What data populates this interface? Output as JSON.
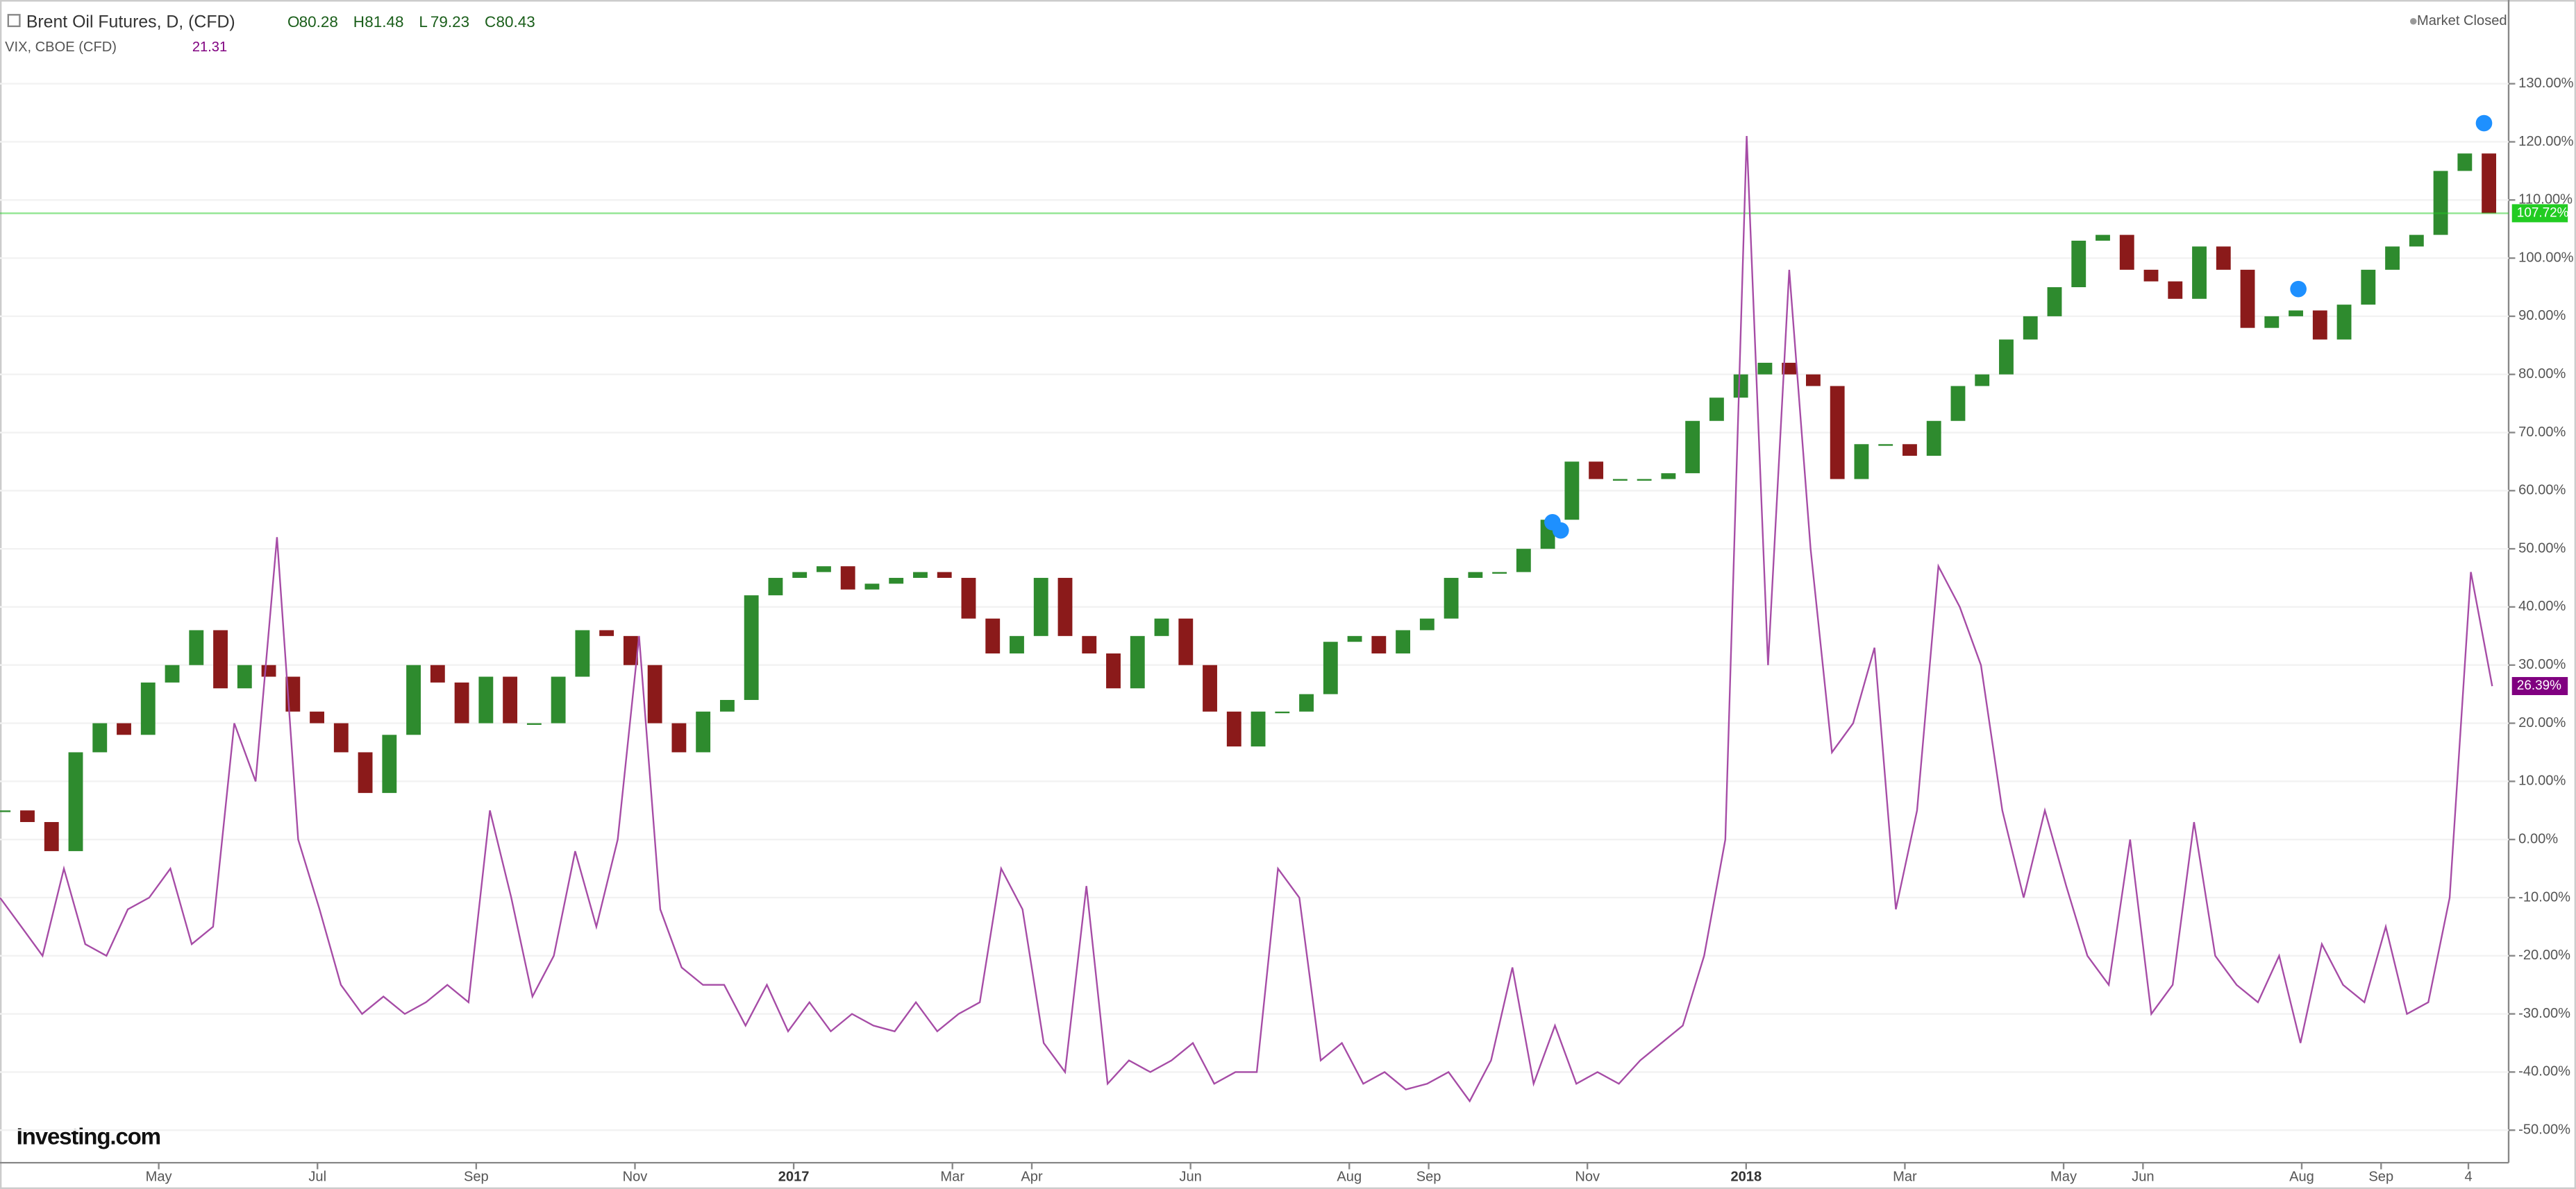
{
  "chart_data": {
    "type": "candlestick",
    "title": "Brent Oil Futures, D, (CFD)",
    "quote": [
      {
        "label": "O",
        "value": 80.28
      },
      {
        "label": "H",
        "value": 81.48
      },
      {
        "label": "L",
        "value": 79.23
      },
      {
        "label": "C",
        "value": 80.43
      }
    ],
    "status": "Market Closed",
    "logo": "Investing.com",
    "series": [
      {
        "name": "Brent Oil Futures, D, (CFD)",
        "type": "candlestick",
        "up_color": "#2e8b2e",
        "down_color": "#8b1a1a",
        "tag_color": "#22cc22",
        "last_label": "107.72%",
        "values": [
          5,
          3,
          -2,
          15,
          20,
          18,
          27,
          30,
          36,
          26,
          30,
          28,
          22,
          20,
          15,
          8,
          18,
          30,
          27,
          20,
          28,
          20,
          20,
          28,
          36,
          35,
          30,
          20,
          15,
          22,
          24,
          42,
          45,
          46,
          47,
          43,
          44,
          45,
          46,
          45,
          38,
          32,
          35,
          45,
          35,
          32,
          26,
          35,
          38,
          30,
          22,
          16,
          22,
          22,
          25,
          34,
          35,
          32,
          36,
          38,
          45,
          46,
          46,
          50,
          55,
          65,
          62,
          62,
          62,
          63,
          72,
          76,
          80,
          82,
          80,
          78,
          62,
          68,
          68,
          66,
          72,
          78,
          80,
          86,
          90,
          95,
          103,
          104,
          98,
          96,
          93,
          102,
          98,
          88,
          90,
          91,
          86,
          92,
          98,
          102,
          104,
          115,
          118,
          107.72
        ]
      },
      {
        "name": "VIX, CBOE (CFD)",
        "type": "line",
        "color": "#a64ca6",
        "tag_color": "#800080",
        "last_label": "26.39%",
        "quote": 21.31,
        "values": [
          -10,
          -15,
          -20,
          -5,
          -18,
          -20,
          -12,
          -10,
          -5,
          -18,
          -15,
          20,
          10,
          52,
          0,
          -12,
          -25,
          -30,
          -27,
          -30,
          -28,
          -25,
          -28,
          5,
          -10,
          -27,
          -20,
          -2,
          -15,
          0,
          35,
          -12,
          -22,
          -25,
          -25,
          -32,
          -25,
          -33,
          -28,
          -33,
          -30,
          -32,
          -33,
          -28,
          -33,
          -30,
          -28,
          -5,
          -12,
          -35,
          -40,
          -8,
          -42,
          -38,
          -40,
          -38,
          -35,
          -42,
          -40,
          -40,
          -5,
          -10,
          -38,
          -35,
          -42,
          -40,
          -43,
          -42,
          -40,
          -45,
          -38,
          -22,
          -42,
          -32,
          -42,
          -40,
          -42,
          -38,
          -35,
          -32,
          -20,
          0,
          121,
          30,
          98,
          50,
          15,
          20,
          33,
          -12,
          5,
          47,
          40,
          30,
          5,
          -10,
          5,
          -8,
          -20,
          -25,
          0,
          -30,
          -25,
          3,
          -20,
          -25,
          -28,
          -20,
          -35,
          -18,
          -25,
          -28,
          -15,
          -30,
          -28,
          -10,
          46,
          26.39
        ]
      }
    ],
    "ylim": [
      -55.6,
      144.4
    ],
    "yticks": [
      {
        "value": -50,
        "label": "-50.00%"
      },
      {
        "value": -40,
        "label": "-40.00%"
      },
      {
        "value": -30,
        "label": "-30.00%"
      },
      {
        "value": -20,
        "label": "-20.00%"
      },
      {
        "value": -10,
        "label": "-10.00%"
      },
      {
        "value": 0,
        "label": "0.00%"
      },
      {
        "value": 10,
        "label": "10.00%"
      },
      {
        "value": 20,
        "label": "20.00%"
      },
      {
        "value": 30,
        "label": "30.00%"
      },
      {
        "value": 40,
        "label": "40.00%"
      },
      {
        "value": 50,
        "label": "50.00%"
      },
      {
        "value": 60,
        "label": "60.00%"
      },
      {
        "value": 70,
        "label": "70.00%"
      },
      {
        "value": 80,
        "label": "80.00%"
      },
      {
        "value": 90,
        "label": "90.00%"
      },
      {
        "value": 100,
        "label": "100.00%"
      },
      {
        "value": 110,
        "label": "110.00%"
      },
      {
        "value": 120,
        "label": "120.00%"
      },
      {
        "value": 130,
        "label": "130.00%"
      }
    ],
    "xlim": [
      2,
      33.4
    ],
    "xticks": [
      {
        "value": 4,
        "label": "May"
      },
      {
        "value": 6,
        "label": "Jul"
      },
      {
        "value": 8,
        "label": "Sep"
      },
      {
        "value": 10,
        "label": "Nov"
      },
      {
        "value": 12,
        "label": "2017"
      },
      {
        "value": 14,
        "label": "Mar"
      },
      {
        "value": 15,
        "label": "Apr"
      },
      {
        "value": 17,
        "label": "Jun"
      },
      {
        "value": 19,
        "label": "Aug"
      },
      {
        "value": 20,
        "label": "Sep"
      },
      {
        "value": 22,
        "label": "Nov"
      },
      {
        "value": 24,
        "label": "2018"
      },
      {
        "value": 26,
        "label": "Mar"
      },
      {
        "value": 28,
        "label": "May"
      },
      {
        "value": 29,
        "label": "Jun"
      },
      {
        "value": 31,
        "label": "Aug"
      },
      {
        "value": 32,
        "label": "Sep"
      },
      {
        "value": 33.1,
        "label": "4"
      }
    ]
  }
}
